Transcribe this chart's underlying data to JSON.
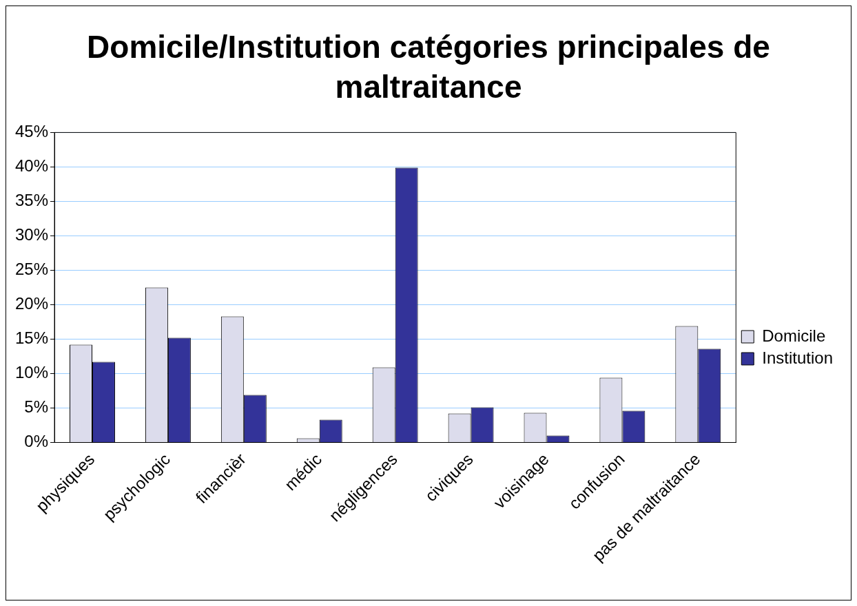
{
  "chart_data": {
    "type": "bar",
    "title": "Domicile/Institution catégories principales de maltraitance",
    "categories": [
      "physiques",
      "psychologic",
      "financièr",
      "médic",
      "négligences",
      "civiques",
      "voisinage",
      "confusion",
      "pas de maltraitance"
    ],
    "series": [
      {
        "name": "Domicile",
        "color": "#dcdcec",
        "values": [
          14.2,
          22.5,
          18.3,
          0.6,
          10.9,
          4.2,
          4.3,
          9.4,
          16.9
        ]
      },
      {
        "name": "Institution",
        "color": "#333399",
        "values": [
          11.7,
          15.2,
          6.9,
          3.3,
          39.9,
          5.1,
          1.0,
          4.6,
          13.6
        ]
      }
    ],
    "ylim": [
      0,
      45
    ],
    "yticks": [
      {
        "value": 0,
        "label": "0%"
      },
      {
        "value": 5,
        "label": "5%"
      },
      {
        "value": 10,
        "label": "10%"
      },
      {
        "value": 15,
        "label": "15%"
      },
      {
        "value": 20,
        "label": "20%"
      },
      {
        "value": 25,
        "label": "25%"
      },
      {
        "value": 30,
        "label": "30%"
      },
      {
        "value": 35,
        "label": "35%"
      },
      {
        "value": 40,
        "label": "40%"
      },
      {
        "value": 45,
        "label": "45%"
      }
    ],
    "grid": "y",
    "legend": "right"
  }
}
